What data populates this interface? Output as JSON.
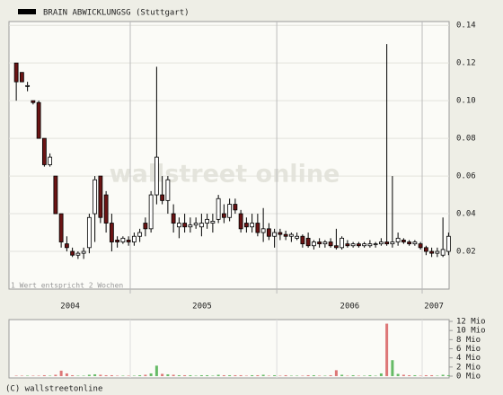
{
  "chart_data": [
    {
      "type": "candlestick",
      "title": "BRAIN ABWICKLUNGSG (Stuttgart)",
      "watermark": "wallstreet online",
      "note": "1 Wert entspricht 2 Wochen",
      "up_color": "#ffffff",
      "down_color": "#6b1414",
      "wick_color": "#000000",
      "x": [
        0,
        1,
        2,
        3,
        4,
        5,
        6,
        7,
        8,
        9,
        10,
        11,
        12,
        13,
        14,
        15,
        16,
        17,
        18,
        19,
        20,
        21,
        22,
        23,
        24,
        25,
        26,
        27,
        28,
        29,
        30,
        31,
        32,
        33,
        34,
        35,
        36,
        37,
        38,
        39,
        40,
        41,
        42,
        43,
        44,
        45,
        46,
        47,
        48,
        49,
        50,
        51,
        52,
        53,
        54,
        55,
        56,
        57,
        58,
        59,
        60,
        61,
        62,
        63,
        64,
        65,
        66,
        67,
        68,
        69,
        70,
        71,
        72,
        73,
        74,
        75,
        76,
        77
      ],
      "open": [
        0.12,
        0.115,
        0.108,
        0.1,
        0.099,
        0.08,
        0.066,
        0.06,
        0.04,
        0.024,
        0.02,
        0.018,
        0.019,
        0.022,
        0.04,
        0.06,
        0.05,
        0.035,
        0.026,
        0.025,
        0.026,
        0.025,
        0.028,
        0.035,
        0.032,
        0.05,
        0.05,
        0.047,
        0.04,
        0.033,
        0.035,
        0.033,
        0.034,
        0.033,
        0.035,
        0.035,
        0.037,
        0.04,
        0.038,
        0.045,
        0.04,
        0.035,
        0.033,
        0.035,
        0.03,
        0.032,
        0.028,
        0.03,
        0.029,
        0.028,
        0.027,
        0.028,
        0.027,
        0.023,
        0.025,
        0.024,
        0.025,
        0.023,
        0.022,
        0.024,
        0.023,
        0.024,
        0.023,
        0.023,
        0.024,
        0.024,
        0.025,
        0.024,
        0.025,
        0.026,
        0.025,
        0.024,
        0.024,
        0.022,
        0.02,
        0.019,
        0.018,
        0.02
      ],
      "high": [
        0.12,
        0.115,
        0.11,
        0.1,
        0.1,
        0.08,
        0.072,
        0.06,
        0.04,
        0.028,
        0.022,
        0.02,
        0.022,
        0.04,
        0.06,
        0.06,
        0.052,
        0.04,
        0.028,
        0.028,
        0.028,
        0.03,
        0.032,
        0.038,
        0.052,
        0.118,
        0.06,
        0.06,
        0.045,
        0.038,
        0.04,
        0.038,
        0.038,
        0.04,
        0.04,
        0.04,
        0.05,
        0.045,
        0.048,
        0.048,
        0.042,
        0.038,
        0.04,
        0.04,
        0.043,
        0.035,
        0.032,
        0.032,
        0.031,
        0.03,
        0.03,
        0.029,
        0.03,
        0.026,
        0.027,
        0.026,
        0.027,
        0.032,
        0.028,
        0.026,
        0.025,
        0.025,
        0.025,
        0.026,
        0.025,
        0.027,
        0.13,
        0.06,
        0.03,
        0.027,
        0.026,
        0.026,
        0.025,
        0.023,
        0.022,
        0.022,
        0.038,
        0.03
      ],
      "low": [
        0.1,
        0.11,
        0.105,
        0.098,
        0.08,
        0.065,
        0.065,
        0.04,
        0.022,
        0.02,
        0.017,
        0.016,
        0.016,
        0.019,
        0.025,
        0.035,
        0.03,
        0.02,
        0.022,
        0.024,
        0.023,
        0.023,
        0.025,
        0.028,
        0.03,
        0.045,
        0.045,
        0.04,
        0.03,
        0.027,
        0.03,
        0.03,
        0.032,
        0.028,
        0.032,
        0.03,
        0.035,
        0.035,
        0.036,
        0.04,
        0.03,
        0.03,
        0.03,
        0.028,
        0.025,
        0.026,
        0.022,
        0.026,
        0.026,
        0.025,
        0.026,
        0.022,
        0.022,
        0.021,
        0.022,
        0.022,
        0.022,
        0.021,
        0.021,
        0.022,
        0.022,
        0.022,
        0.022,
        0.022,
        0.022,
        0.023,
        0.023,
        0.022,
        0.023,
        0.024,
        0.023,
        0.023,
        0.021,
        0.018,
        0.017,
        0.017,
        0.017,
        0.018
      ],
      "close": [
        0.11,
        0.11,
        0.108,
        0.099,
        0.08,
        0.066,
        0.07,
        0.04,
        0.025,
        0.022,
        0.018,
        0.019,
        0.02,
        0.038,
        0.058,
        0.038,
        0.035,
        0.025,
        0.025,
        0.027,
        0.025,
        0.028,
        0.03,
        0.032,
        0.05,
        0.07,
        0.047,
        0.058,
        0.035,
        0.035,
        0.033,
        0.034,
        0.035,
        0.035,
        0.037,
        0.036,
        0.048,
        0.038,
        0.045,
        0.042,
        0.032,
        0.033,
        0.035,
        0.03,
        0.032,
        0.028,
        0.03,
        0.029,
        0.028,
        0.029,
        0.028,
        0.024,
        0.023,
        0.025,
        0.024,
        0.025,
        0.023,
        0.022,
        0.027,
        0.023,
        0.024,
        0.023,
        0.024,
        0.024,
        0.024,
        0.025,
        0.024,
        0.025,
        0.027,
        0.025,
        0.024,
        0.025,
        0.022,
        0.02,
        0.019,
        0.02,
        0.021,
        0.028
      ],
      "xlim": [
        -1.3,
        77.1
      ],
      "xticks": [
        {
          "value": 9.6,
          "label": "2004"
        },
        {
          "value": 33.1,
          "label": "2005"
        },
        {
          "value": 59.4,
          "label": "2006"
        },
        {
          "value": 74.4,
          "label": "2007"
        }
      ],
      "xgrid": [
        20.3,
        46.4,
        72.3
      ],
      "ylim": [
        0,
        0.142
      ],
      "yticks": [
        0.02,
        0.04,
        0.06,
        0.08,
        {
          "value": 0.1,
          "label": "0.10"
        },
        0.12,
        0.14
      ],
      "grid": true
    },
    {
      "type": "bar",
      "up_color": "#66bb66",
      "down_color": "#dd7777",
      "x": [
        0,
        1,
        2,
        3,
        4,
        5,
        6,
        7,
        8,
        9,
        10,
        11,
        12,
        13,
        14,
        15,
        16,
        17,
        18,
        19,
        20,
        21,
        22,
        23,
        24,
        25,
        26,
        27,
        28,
        29,
        30,
        31,
        32,
        33,
        34,
        35,
        36,
        37,
        38,
        39,
        40,
        41,
        42,
        43,
        44,
        45,
        46,
        47,
        48,
        49,
        50,
        51,
        52,
        53,
        54,
        55,
        56,
        57,
        58,
        59,
        60,
        61,
        62,
        63,
        64,
        65,
        66,
        67,
        68,
        69,
        70,
        71,
        72,
        73,
        74,
        75,
        76,
        77
      ],
      "values": [
        0.1,
        0.1,
        0.1,
        0.1,
        0.1,
        0.2,
        0.1,
        0.3,
        1.2,
        0.6,
        0.2,
        0.1,
        0.1,
        0.3,
        0.4,
        0.3,
        0.2,
        0.2,
        0.1,
        0.1,
        0.1,
        0.1,
        0.2,
        0.3,
        0.6,
        2.3,
        0.5,
        0.4,
        0.3,
        0.2,
        0.2,
        0.2,
        0.1,
        0.2,
        0.2,
        0.1,
        0.3,
        0.2,
        0.2,
        0.2,
        0.2,
        0.1,
        0.2,
        0.2,
        0.3,
        0.1,
        0.2,
        0.1,
        0.2,
        0.1,
        0.1,
        0.1,
        0.2,
        0.2,
        0.1,
        0.1,
        0.2,
        1.3,
        0.3,
        0.1,
        0.2,
        0.1,
        0.1,
        0.2,
        0.1,
        0.6,
        11.5,
        3.5,
        0.5,
        0.3,
        0.2,
        0.2,
        0.1,
        0.2,
        0.2,
        0.1,
        0.3,
        0.2
      ],
      "xlim": [
        -1.3,
        77.1
      ],
      "ylim": [
        0,
        12
      ],
      "yticks": [
        {
          "value": 0,
          "label": "0 Mio"
        },
        {
          "value": 2,
          "label": "2 Mio"
        },
        {
          "value": 4,
          "label": "4 Mio"
        },
        {
          "value": 6,
          "label": "6 Mio"
        },
        {
          "value": 8,
          "label": "8 Mio"
        },
        {
          "value": 10,
          "label": "10 Mio"
        },
        {
          "value": 12,
          "label": "12 Mio"
        }
      ]
    }
  ],
  "footer": "(C) wallstreetonline"
}
